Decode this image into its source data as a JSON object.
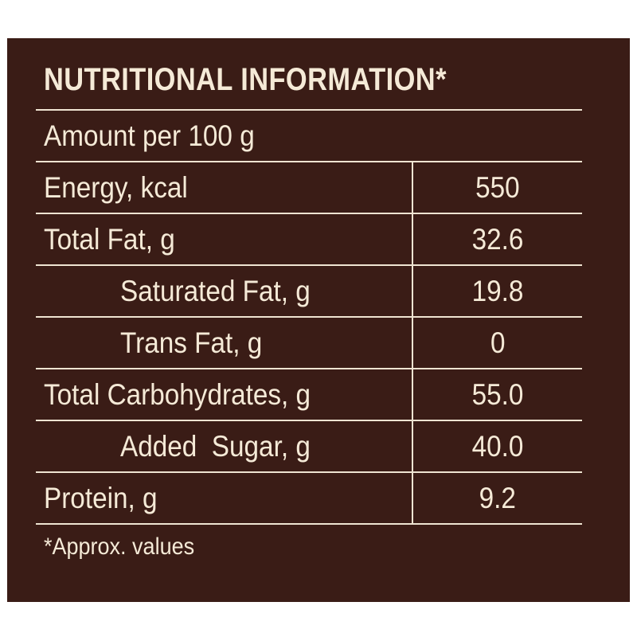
{
  "title": "NUTRITIONAL INFORMATION*",
  "serving": "Amount per 100 g",
  "rows": [
    {
      "name": "Energy, kcal",
      "value": "550"
    },
    {
      "name": "Total Fat, g",
      "value": "32.6"
    },
    {
      "name": "Saturated Fat, g",
      "value": "19.8"
    },
    {
      "name": "Trans Fat, g",
      "value": "0"
    },
    {
      "name": "Total Carbohydrates, g",
      "value": "55.0"
    },
    {
      "name": "Added  Sugar, g",
      "value": "40.0"
    },
    {
      "name": "Protein, g",
      "value": "9.2"
    }
  ],
  "footnote": "*Approx. values",
  "colors": {
    "background": "#3a1c16",
    "text": "#f5ead7",
    "lines": "#efe4d2"
  }
}
